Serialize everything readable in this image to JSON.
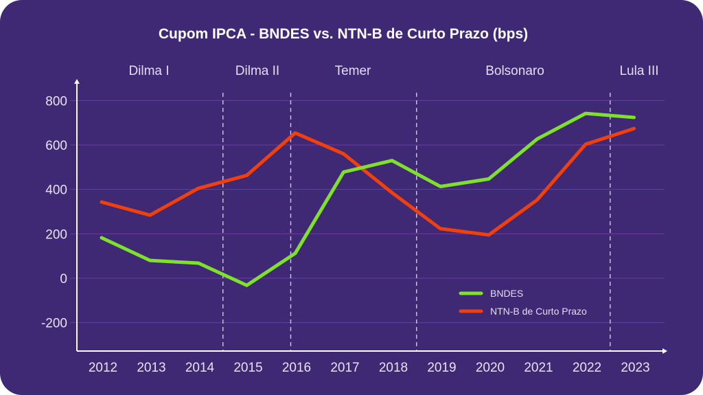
{
  "chart_data": {
    "type": "line",
    "title": "Cupom IPCA - BNDES vs. NTN-B de Curto Prazo (bps)",
    "xlabel": "",
    "ylabel": "",
    "x": [
      "2012",
      "2013",
      "2014",
      "2015",
      "2016",
      "2017",
      "2018",
      "2019",
      "2020",
      "2021",
      "2022",
      "2023"
    ],
    "ylim": [
      -320,
      830
    ],
    "yticks": [
      800,
      600,
      400,
      200,
      0,
      -200
    ],
    "ytick_labels": [
      "800",
      "600",
      "400",
      "200",
      "0",
      "-200"
    ],
    "grid": true,
    "series": [
      {
        "name": "BNDES",
        "color": "#7ee22d",
        "values": [
          182,
          80,
          68,
          -32,
          112,
          478,
          530,
          413,
          447,
          627,
          742,
          724
        ]
      },
      {
        "name": "NTN-B de Curto Prazo",
        "color": "#f2400c",
        "values": [
          343,
          284,
          405,
          463,
          654,
          560,
          385,
          223,
          195,
          353,
          603,
          674
        ]
      }
    ],
    "periods": [
      {
        "label": "Dilma I",
        "start": 2012,
        "end": 2014.5
      },
      {
        "label": "Dilma II",
        "start": 2014.5,
        "end": 2015.9
      },
      {
        "label": "Temer",
        "start": 2015.9,
        "end": 2018.5
      },
      {
        "label": "Bolsonaro",
        "start": 2018.5,
        "end": 2022.5
      },
      {
        "label": "Lula III",
        "start": 2022.5,
        "end": 2023
      }
    ],
    "period_dividers": [
      2014.5,
      2015.9,
      2018.5,
      2022.5
    ],
    "legend_position": "bottom-right"
  },
  "colors": {
    "background": "#3f2874",
    "grid": "#6b3ea3",
    "axis": "#ffffff",
    "divider": "#c9bde0"
  }
}
